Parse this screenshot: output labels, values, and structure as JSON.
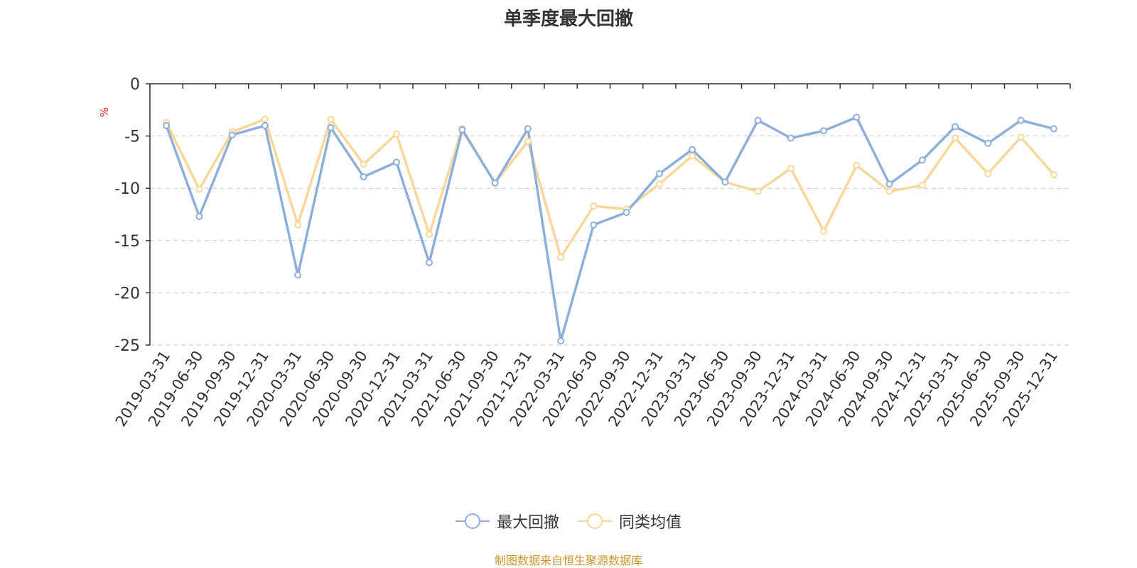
{
  "colors": {
    "series1": "#8eafd9",
    "series2": "#f8d89a",
    "axis": "#333333",
    "grid": "#c8c8c8",
    "unit": "#e02020",
    "source": "#c9962b"
  },
  "chart_data": {
    "type": "line",
    "title": "单季度最大回撤",
    "ylabel": "%",
    "ylim": [
      -25,
      0
    ],
    "yticks": [
      0,
      -5,
      -10,
      -15,
      -20,
      -25
    ],
    "grid": "horizontal dashed",
    "legend_position": "bottom-center",
    "categories": [
      "2019-03-31",
      "2019-06-30",
      "2019-09-30",
      "2019-12-31",
      "2020-03-31",
      "2020-06-30",
      "2020-09-30",
      "2020-12-31",
      "2021-03-31",
      "2021-06-30",
      "2021-09-30",
      "2021-12-31",
      "2022-03-31",
      "2022-06-30",
      "2022-09-30",
      "2022-12-31",
      "2023-03-31",
      "2023-06-30",
      "2023-09-30",
      "2023-12-31",
      "2024-03-31",
      "2024-06-30",
      "2024-09-30",
      "2024-12-31",
      "2025-03-31",
      "2025-06-30",
      "2025-09-30",
      "2025-12-31"
    ],
    "series": [
      {
        "name": "最大回撤",
        "values": [
          -4.0,
          -12.7,
          -4.9,
          -4.0,
          -18.3,
          -4.2,
          -8.9,
          -7.5,
          -17.1,
          -4.4,
          -9.5,
          -4.3,
          -24.6,
          -13.5,
          -12.3,
          -8.6,
          -6.3,
          -9.4,
          -3.5,
          -5.2,
          -4.5,
          -3.2,
          -9.6,
          -7.3,
          -4.1,
          -5.7,
          -3.5,
          -4.3
        ]
      },
      {
        "name": "同类均值",
        "values": [
          -3.7,
          -10.1,
          -4.6,
          -3.4,
          -13.5,
          -3.4,
          -7.7,
          -4.8,
          -14.4,
          -4.3,
          -9.5,
          -5.5,
          -16.6,
          -11.7,
          -12.0,
          -9.6,
          -6.9,
          -9.4,
          -10.3,
          -8.1,
          -14.1,
          -7.8,
          -10.3,
          -9.7,
          -5.2,
          -8.6,
          -5.1,
          -8.7
        ]
      }
    ]
  },
  "footer": {
    "source": "制图数据来自恒生聚源数据库"
  }
}
